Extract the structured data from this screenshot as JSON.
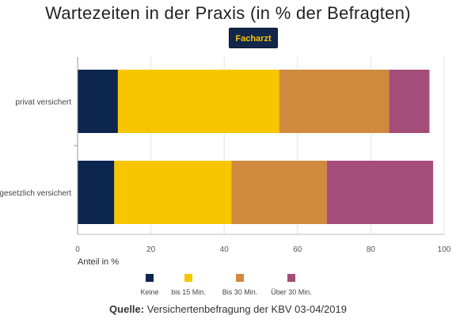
{
  "title": "Wartezeiten in der Praxis (in % der Befragten)",
  "tab": {
    "label": "Facharzt"
  },
  "source": {
    "label": "Quelle:",
    "text": "Versichertenbefragung der KBV 03-04/2019"
  },
  "colors": {
    "keine": "#0d2650",
    "bis15": "#f7c600",
    "bis30": "#d0893d",
    "ueber30": "#a44d78"
  },
  "chart_data": {
    "type": "bar",
    "orientation": "horizontal",
    "stacked": true,
    "categories": [
      "privat versichert",
      "gesetzlich versichert"
    ],
    "series": [
      {
        "name": "Keine",
        "values": [
          11,
          10
        ]
      },
      {
        "name": "bis 15 Min.",
        "values": [
          44,
          32
        ]
      },
      {
        "name": "Bis 30 Min.",
        "values": [
          30,
          26
        ]
      },
      {
        "name": "Über 30 Min.",
        "values": [
          11,
          29
        ]
      }
    ],
    "xlabel": "Anteil in %",
    "xlim": [
      0,
      100
    ],
    "xticks": [
      0,
      20,
      40,
      60,
      80,
      100
    ],
    "grid": true,
    "legend": "bottom"
  }
}
